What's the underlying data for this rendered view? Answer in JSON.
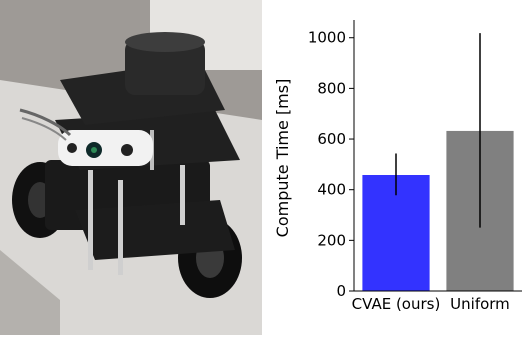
{
  "photo": {
    "subject": "robot-photo",
    "colors": {
      "floor": "#b9b6b3",
      "robot": "#161616",
      "sensor_body": "#f4f4f4",
      "table": "#d9d8d6"
    }
  },
  "chart_data": {
    "type": "bar",
    "categories": [
      "CVAE (ours)",
      "Uniform"
    ],
    "values": [
      458,
      632
    ],
    "error_low": [
      378,
      250
    ],
    "error_high": [
      543,
      1018
    ],
    "colors": [
      "#3333ff",
      "#808080"
    ],
    "title": "",
    "xlabel": "",
    "ylabel": "Compute Time [ms]",
    "ylim": [
      0,
      1070
    ],
    "yticks": [
      0,
      200,
      400,
      600,
      800,
      1000
    ],
    "grid": false
  }
}
